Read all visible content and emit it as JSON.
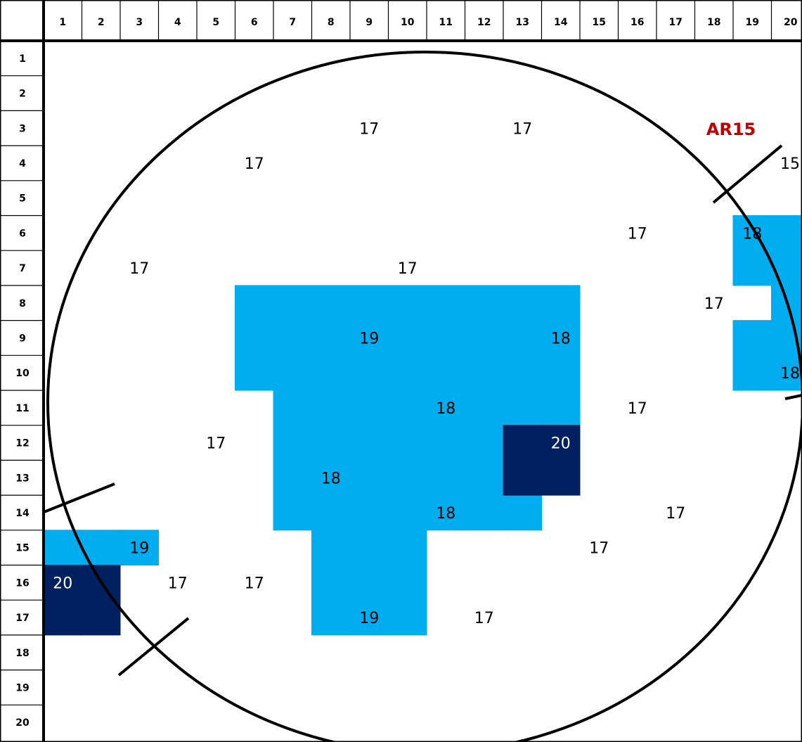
{
  "grid": {
    "col_labels": [
      "1",
      "2",
      "3",
      "4",
      "5",
      "6",
      "7",
      "8",
      "9",
      "10",
      "11",
      "12",
      "13",
      "14",
      "15",
      "16",
      "17",
      "18",
      "19",
      "20"
    ],
    "row_labels": [
      "1",
      "2",
      "3",
      "4",
      "5",
      "6",
      "7",
      "8",
      "9",
      "10",
      "11",
      "12",
      "13",
      "14",
      "15",
      "16",
      "17",
      "18",
      "19",
      "20"
    ]
  },
  "colors": {
    "light_blue": "#00AEEF",
    "dark_navy": "#002060",
    "label_red": "#C00000",
    "line": "#000000"
  },
  "highlighted_regions": [
    {
      "shade": "light_blue",
      "cells": [
        [
          6,
          19
        ],
        [
          7,
          19
        ],
        [
          9,
          19
        ],
        [
          10,
          19
        ],
        [
          6,
          20
        ],
        [
          7,
          20
        ],
        [
          8,
          20
        ],
        [
          9,
          20
        ],
        [
          10,
          20
        ]
      ]
    },
    {
      "shade": "light_blue",
      "cells": [
        [
          8,
          6
        ],
        [
          8,
          7
        ],
        [
          8,
          8
        ],
        [
          8,
          9
        ],
        [
          8,
          10
        ],
        [
          8,
          11
        ],
        [
          8,
          12
        ],
        [
          8,
          13
        ],
        [
          8,
          14
        ],
        [
          9,
          6
        ],
        [
          9,
          7
        ],
        [
          9,
          8
        ],
        [
          9,
          9
        ],
        [
          9,
          10
        ],
        [
          9,
          11
        ],
        [
          9,
          12
        ],
        [
          9,
          13
        ],
        [
          9,
          14
        ],
        [
          10,
          6
        ],
        [
          10,
          7
        ],
        [
          10,
          8
        ],
        [
          10,
          9
        ],
        [
          10,
          10
        ],
        [
          10,
          11
        ],
        [
          10,
          12
        ],
        [
          10,
          13
        ],
        [
          10,
          14
        ],
        [
          11,
          7
        ],
        [
          11,
          8
        ],
        [
          11,
          9
        ],
        [
          11,
          10
        ],
        [
          11,
          11
        ],
        [
          11,
          12
        ],
        [
          11,
          13
        ],
        [
          11,
          14
        ],
        [
          12,
          7
        ],
        [
          12,
          8
        ],
        [
          12,
          9
        ],
        [
          12,
          10
        ],
        [
          12,
          11
        ],
        [
          12,
          12
        ],
        [
          13,
          7
        ],
        [
          13,
          8
        ],
        [
          13,
          9
        ],
        [
          13,
          10
        ],
        [
          13,
          11
        ],
        [
          13,
          12
        ],
        [
          14,
          7
        ],
        [
          14,
          8
        ],
        [
          14,
          9
        ],
        [
          14,
          10
        ],
        [
          14,
          11
        ],
        [
          14,
          12
        ],
        [
          14,
          13
        ],
        [
          15,
          8
        ],
        [
          15,
          9
        ],
        [
          15,
          10
        ],
        [
          16,
          8
        ],
        [
          16,
          9
        ],
        [
          16,
          10
        ],
        [
          17,
          8
        ],
        [
          17,
          9
        ],
        [
          17,
          10
        ]
      ]
    },
    {
      "shade": "light_blue",
      "cells": [
        [
          15,
          1
        ],
        [
          15,
          2
        ],
        [
          15,
          3
        ]
      ]
    },
    {
      "shade": "dark_navy",
      "cells": [
        [
          12,
          13
        ],
        [
          12,
          14
        ],
        [
          13,
          13
        ],
        [
          13,
          14
        ]
      ]
    },
    {
      "shade": "dark_navy",
      "cells": [
        [
          16,
          1
        ],
        [
          16,
          2
        ],
        [
          17,
          1
        ],
        [
          17,
          2
        ]
      ]
    }
  ],
  "values": [
    {
      "row": 3,
      "col": 9,
      "text": "17"
    },
    {
      "row": 3,
      "col": 13,
      "text": "17"
    },
    {
      "row": 4,
      "col": 6,
      "text": "17"
    },
    {
      "row": 4,
      "col": 20,
      "text": "15",
      "pos": "right"
    },
    {
      "row": 6,
      "col": 16,
      "text": "17"
    },
    {
      "row": 6,
      "col": 19,
      "text": "18"
    },
    {
      "row": 7,
      "col": 3,
      "text": "17"
    },
    {
      "row": 7,
      "col": 10,
      "text": "17"
    },
    {
      "row": 8,
      "col": 18,
      "text": "17"
    },
    {
      "row": 9,
      "col": 9,
      "text": "19"
    },
    {
      "row": 9,
      "col": 14,
      "text": "18"
    },
    {
      "row": 10,
      "col": 20,
      "text": "18",
      "pos": "right"
    },
    {
      "row": 11,
      "col": 11,
      "text": "18"
    },
    {
      "row": 11,
      "col": 16,
      "text": "17"
    },
    {
      "row": 12,
      "col": 5,
      "text": "17"
    },
    {
      "row": 12,
      "col": 14,
      "text": "20",
      "light": true
    },
    {
      "row": 13,
      "col": 8,
      "text": "18"
    },
    {
      "row": 14,
      "col": 11,
      "text": "18"
    },
    {
      "row": 14,
      "col": 17,
      "text": "17"
    },
    {
      "row": 15,
      "col": 3,
      "text": "19"
    },
    {
      "row": 15,
      "col": 15,
      "text": "17"
    },
    {
      "row": 16,
      "col": 1,
      "text": "20",
      "light": true
    },
    {
      "row": 16,
      "col": 4,
      "text": "17"
    },
    {
      "row": 16,
      "col": 6,
      "text": "17"
    },
    {
      "row": 17,
      "col": 9,
      "text": "19"
    },
    {
      "row": 17,
      "col": 12,
      "text": "17"
    }
  ],
  "label": {
    "text": "AR15",
    "color": "label_red"
  }
}
